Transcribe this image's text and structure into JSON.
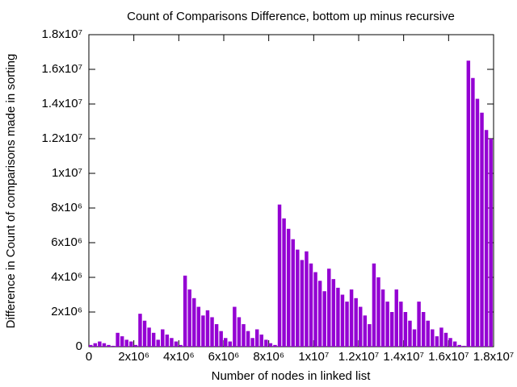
{
  "chart_data": {
    "type": "bar",
    "title": "Count of Comparisons Difference, bottom up minus recursive",
    "xlabel": "Number of nodes in linked list",
    "ylabel": "Difference in Count of comparisons made in sorting",
    "color": "#9400d3",
    "grid": false,
    "xlim": [
      0,
      18000000
    ],
    "ylim": [
      0,
      18000000
    ],
    "xticks": [
      0,
      {
        "value": 2000000,
        "label": "2x10⁶"
      },
      {
        "value": 4000000,
        "label": "4x10⁶"
      },
      {
        "value": 6000000,
        "label": "6x10⁶"
      },
      {
        "value": 8000000,
        "label": "8x10⁶"
      },
      {
        "value": 10000000,
        "label": "1x10⁷"
      },
      {
        "value": 12000000,
        "label": "1.2x10⁷"
      },
      {
        "value": 14000000,
        "label": "1.4x10⁷"
      },
      {
        "value": 16000000,
        "label": "1.6x10⁷"
      },
      {
        "value": 18000000,
        "label": "1.8x10⁷"
      }
    ],
    "yticks": [
      0,
      {
        "value": 2000000,
        "label": "2x10⁶"
      },
      {
        "value": 4000000,
        "label": "4x10⁶"
      },
      {
        "value": 6000000,
        "label": "6x10⁶"
      },
      {
        "value": 8000000,
        "label": "8x10⁶"
      },
      {
        "value": 10000000,
        "label": "1x10⁷"
      },
      {
        "value": 12000000,
        "label": "1.2x10⁷"
      },
      {
        "value": 14000000,
        "label": "1.4x10⁷"
      },
      {
        "value": 16000000,
        "label": "1.6x10⁷"
      },
      {
        "value": 18000000,
        "label": "1.8x10⁷"
      }
    ],
    "x": [
      0,
      200000,
      400000,
      600000,
      800000,
      1000000,
      1200000,
      1400000,
      1600000,
      1800000,
      2000000,
      2200000,
      2400000,
      2600000,
      2800000,
      3000000,
      3200000,
      3400000,
      3600000,
      3800000,
      4000000,
      4200000,
      4400000,
      4600000,
      4800000,
      5000000,
      5200000,
      5400000,
      5600000,
      5800000,
      6000000,
      6200000,
      6400000,
      6600000,
      6800000,
      7000000,
      7200000,
      7400000,
      7600000,
      7800000,
      8000000,
      8200000,
      8400000,
      8600000,
      8800000,
      9000000,
      9200000,
      9400000,
      9600000,
      9800000,
      10000000,
      10200000,
      10400000,
      10600000,
      10800000,
      11000000,
      11200000,
      11400000,
      11600000,
      11800000,
      12000000,
      12200000,
      12400000,
      12600000,
      12800000,
      13000000,
      13200000,
      13400000,
      13600000,
      13800000,
      14000000,
      14200000,
      14400000,
      14600000,
      14800000,
      15000000,
      15200000,
      15400000,
      15600000,
      15800000,
      16000000,
      16200000,
      16400000,
      16600000,
      16800000,
      17000000,
      17200000,
      17400000,
      17600000,
      17800000
    ],
    "values": [
      100000,
      200000,
      300000,
      200000,
      100000,
      50000,
      800000,
      600000,
      400000,
      300000,
      100000,
      1900000,
      1500000,
      1100000,
      800000,
      400000,
      1000000,
      700000,
      500000,
      300000,
      100000,
      4100000,
      3300000,
      2800000,
      2300000,
      1800000,
      2100000,
      1700000,
      1300000,
      900000,
      500000,
      300000,
      2300000,
      1700000,
      1300000,
      900000,
      500000,
      1000000,
      700000,
      400000,
      200000,
      100000,
      8200000,
      7400000,
      6800000,
      6200000,
      5600000,
      5000000,
      5500000,
      4800000,
      4300000,
      3800000,
      3200000,
      4500000,
      3900000,
      3400000,
      3000000,
      2600000,
      3300000,
      2800000,
      2300000,
      1800000,
      1300000,
      4800000,
      4000000,
      3300000,
      2600000,
      2000000,
      3300000,
      2600000,
      2000000,
      1500000,
      1000000,
      2600000,
      2000000,
      1500000,
      1000000,
      600000,
      1100000,
      800000,
      500000,
      300000,
      100000,
      50000,
      16500000,
      15500000,
      14300000,
      13500000,
      12500000,
      12000000
    ]
  }
}
